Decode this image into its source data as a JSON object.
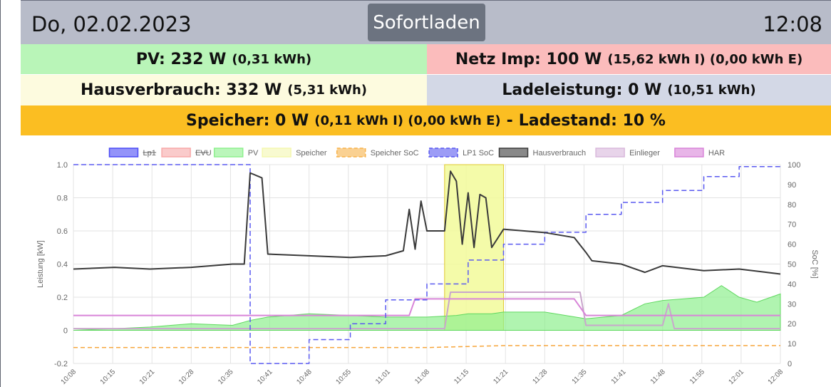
{
  "header": {
    "date": "Do, 02.02.2023",
    "mode_button": "Sofortladen",
    "time": "12:08"
  },
  "status": {
    "pv_main": "PV: 232 W",
    "pv_sub": "(0,31 kWh)",
    "netz_main": "Netz Imp: 100 W",
    "netz_sub": "(15,62 kWh I) (0,00 kWh E)",
    "haus_main": "Hausverbrauch: 332 W",
    "haus_sub": "(5,31 kWh)",
    "lade_main": "Ladeleistung: 0 W",
    "lade_sub": "(10,51 kWh)",
    "speicher_main": "Speicher: 0 W",
    "speicher_sub": "(0,11 kWh I) (0,00 kWh E)",
    "speicher_sep": "-",
    "ladestand": "Ladestand: 10 %"
  },
  "colors": {
    "pv_bg": "#b9f5b8",
    "netz_bg": "#fbbcbc",
    "haus_bg": "#fdfbdf",
    "lade_bg": "#d3d8e6",
    "speicher_bg": "#fbbe22",
    "header_bg": "#b8bcc9"
  },
  "chart_data": {
    "type": "line",
    "ylabel": "Leistung [kW]",
    "y2label": "SoC [%]",
    "ylim": [
      -0.2,
      1.0
    ],
    "y2lim": [
      0,
      100
    ],
    "y_ticks": [
      "1.0",
      "0.8",
      "0.6",
      "0.4",
      "0.2",
      "0",
      "-0.2"
    ],
    "y2_ticks": [
      "100",
      "90",
      "80",
      "70",
      "60",
      "50",
      "40",
      "30",
      "20",
      "10",
      "0"
    ],
    "x_ticks": [
      "10:08",
      "10:15",
      "10:21",
      "10:28",
      "10:35",
      "10:41",
      "10:48",
      "10:55",
      "11:01",
      "11:08",
      "11:15",
      "11:21",
      "11:28",
      "11:35",
      "11:41",
      "11:48",
      "11:55",
      "12:01",
      "12:08"
    ],
    "grid": true,
    "legend_position": "top",
    "legend": [
      {
        "name": "Lp1",
        "color": "#4b4bf5",
        "hidden": true
      },
      {
        "name": "EVU",
        "color": "#f7a8a8",
        "hidden": true
      },
      {
        "name": "PV",
        "color": "#8ef08e",
        "hidden": false
      },
      {
        "name": "Speicher",
        "color": "#f4f7b0",
        "hidden": false
      },
      {
        "name": "Speicher SoC",
        "color": "#f7b24a",
        "hidden": false
      },
      {
        "name": "LP1 SoC",
        "color": "#5a5af0",
        "hidden": false
      },
      {
        "name": "Hausverbrauch",
        "color": "#3a3a3a",
        "hidden": false
      },
      {
        "name": "Einlieger",
        "color": "#d9b8dc",
        "hidden": false
      },
      {
        "name": "HAR",
        "color": "#d884d8",
        "hidden": false
      }
    ],
    "series": [
      {
        "name": "Hausverbrauch",
        "x": [
          "10:08",
          "10:15",
          "10:21",
          "10:28",
          "10:35",
          "10:37",
          "10:38",
          "10:40",
          "10:41",
          "10:48",
          "10:55",
          "11:01",
          "11:04",
          "11:05",
          "11:06",
          "11:07",
          "11:08",
          "11:11",
          "11:12",
          "11:13",
          "11:14",
          "11:15",
          "11:16",
          "11:17",
          "11:18",
          "11:19",
          "11:21",
          "11:28",
          "11:33",
          "11:35",
          "11:36",
          "11:41",
          "11:45",
          "11:48",
          "11:55",
          "12:01",
          "12:08"
        ],
        "values": [
          0.37,
          0.38,
          0.37,
          0.38,
          0.4,
          0.4,
          0.95,
          0.92,
          0.46,
          0.45,
          0.44,
          0.45,
          0.48,
          0.73,
          0.49,
          0.78,
          0.6,
          0.6,
          0.96,
          0.9,
          0.52,
          0.83,
          0.5,
          0.82,
          0.8,
          0.5,
          0.61,
          0.59,
          0.56,
          0.47,
          0.42,
          0.4,
          0.35,
          0.39,
          0.36,
          0.37,
          0.34
        ]
      },
      {
        "name": "PV",
        "x": [
          "10:08",
          "10:15",
          "10:21",
          "10:28",
          "10:35",
          "10:38",
          "10:41",
          "10:48",
          "10:55",
          "11:01",
          "11:08",
          "11:13",
          "11:15",
          "11:19",
          "11:21",
          "11:28",
          "11:35",
          "11:41",
          "11:45",
          "11:48",
          "11:55",
          "11:58",
          "12:01",
          "12:04",
          "12:08"
        ],
        "values": [
          0.0,
          0.01,
          0.02,
          0.04,
          0.03,
          0.06,
          0.08,
          0.1,
          0.09,
          0.08,
          0.08,
          0.09,
          0.1,
          0.1,
          0.11,
          0.11,
          0.07,
          0.09,
          0.16,
          0.18,
          0.2,
          0.27,
          0.2,
          0.17,
          0.22
        ]
      },
      {
        "name": "LP1 SoC",
        "x": [
          "10:08",
          "10:37",
          "10:38",
          "10:48",
          "10:55",
          "11:01",
          "11:08",
          "11:15",
          "11:21",
          "11:28",
          "11:35",
          "11:41",
          "11:48",
          "11:55",
          "12:01",
          "12:08"
        ],
        "values": [
          100,
          100,
          0,
          12,
          20,
          32,
          40,
          52,
          60,
          66,
          75,
          81,
          87,
          94,
          99,
          100
        ]
      },
      {
        "name": "Speicher SoC",
        "x": [
          "10:08",
          "11:08",
          "11:21",
          "12:08"
        ],
        "values": [
          8,
          8,
          9,
          9
        ]
      },
      {
        "name": "Einlieger",
        "x": [
          "10:08",
          "11:11",
          "11:12",
          "11:21",
          "11:34",
          "11:35",
          "11:48",
          "11:49",
          "11:50",
          "12:08"
        ],
        "values": [
          0.01,
          0.01,
          0.23,
          0.23,
          0.23,
          0.03,
          0.03,
          0.16,
          0.01,
          0.01
        ]
      },
      {
        "name": "HAR",
        "x": [
          "10:08",
          "11:05",
          "11:06",
          "11:33",
          "11:35",
          "11:41",
          "11:45",
          "11:48",
          "11:55",
          "12:01",
          "12:08"
        ],
        "values": [
          0.09,
          0.09,
          0.19,
          0.19,
          0.09,
          0.09,
          0.09,
          0.09,
          0.09,
          0.09,
          0.09
        ]
      },
      {
        "name": "Speicher",
        "x": [
          "11:11",
          "11:21"
        ],
        "values": [
          1.0,
          1.0
        ]
      }
    ]
  }
}
